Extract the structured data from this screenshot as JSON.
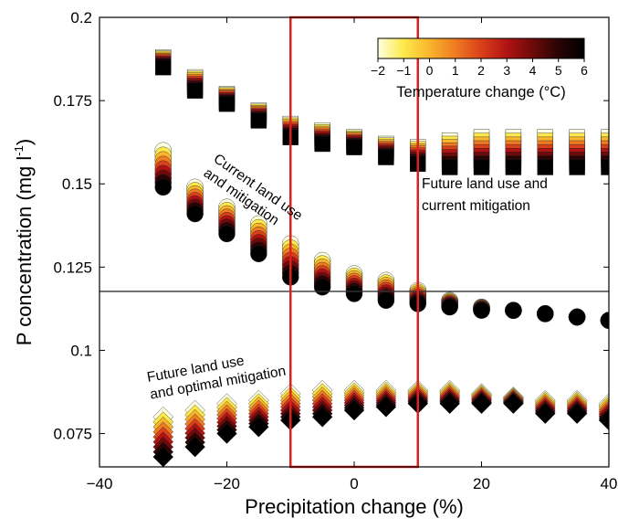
{
  "chart_data": {
    "type": "scatter",
    "xlabel": "Precipitation change (%)",
    "ylabel_main": "P concentration (mg l",
    "ylabel_sup": "-1",
    "ylabel_close": ")",
    "xlim": [
      -40,
      40
    ],
    "ylim": [
      0.065,
      0.2
    ],
    "xticks": [
      -40,
      -20,
      0,
      20,
      40
    ],
    "xtick_labels": [
      "−40",
      "−20",
      "0",
      "20",
      "40"
    ],
    "yticks": [
      0.075,
      0.1,
      0.125,
      0.15,
      0.175,
      0.2
    ],
    "ytick_labels": [
      "0.075",
      "0.1",
      "0.125",
      "0.15",
      "0.175",
      "0.2"
    ],
    "x": [
      -30,
      -25,
      -20,
      -15,
      -10,
      -5,
      0,
      5,
      10,
      15,
      20,
      25,
      30,
      35,
      40
    ],
    "reference_line": 0.1177,
    "highlight_region": {
      "x": [
        -10,
        10
      ],
      "y": [
        0.065,
        0.2
      ],
      "color": "#e0201a"
    },
    "colorbar": {
      "title": "Temperature change (°C)",
      "ticks": [
        -2,
        -1,
        0,
        1,
        2,
        3,
        4,
        5,
        6
      ],
      "tick_labels": [
        "−2",
        "−1",
        "0",
        "1",
        "2",
        "3",
        "4",
        "5",
        "6"
      ],
      "colors": [
        "#ffffe0",
        "#fde94a",
        "#f9b52c",
        "#ef7b22",
        "#d9411a",
        "#b01313",
        "#6e0a0a",
        "#2a0404",
        "#000000"
      ]
    },
    "series": [
      {
        "marker": "square",
        "label": [
          "Future land use and",
          "current mitigation"
        ],
        "ymin": [
          0.185,
          0.178,
          0.174,
          0.169,
          0.164,
          0.162,
          0.161,
          0.158,
          0.156,
          0.155,
          0.155,
          0.155,
          0.155,
          0.155,
          0.155
        ],
        "ymax": [
          0.188,
          0.182,
          0.177,
          0.172,
          0.168,
          0.166,
          0.164,
          0.162,
          0.161,
          0.163,
          0.164,
          0.164,
          0.164,
          0.164,
          0.164
        ]
      },
      {
        "marker": "circle",
        "label": [
          "Current land use",
          "and mitigation"
        ],
        "ymin": [
          0.149,
          0.141,
          0.135,
          0.129,
          0.122,
          0.119,
          0.117,
          0.115,
          0.114,
          0.113,
          0.112,
          0.112,
          0.111,
          0.11,
          0.109
        ],
        "ymax": [
          0.16,
          0.149,
          0.143,
          0.138,
          0.132,
          0.127,
          0.123,
          0.121,
          0.118,
          0.115,
          0.113,
          0.112,
          0.111,
          0.11,
          0.109
        ]
      },
      {
        "marker": "diamond",
        "label": [
          "Future land use",
          "and optimal mitigation"
        ],
        "ymin": [
          0.068,
          0.071,
          0.075,
          0.077,
          0.079,
          0.08,
          0.082,
          0.083,
          0.084,
          0.084,
          0.084,
          0.084,
          0.081,
          0.081,
          0.079
        ],
        "ymax": [
          0.08,
          0.082,
          0.084,
          0.085,
          0.087,
          0.088,
          0.088,
          0.088,
          0.088,
          0.088,
          0.087,
          0.086,
          0.085,
          0.085,
          0.084
        ]
      }
    ]
  }
}
